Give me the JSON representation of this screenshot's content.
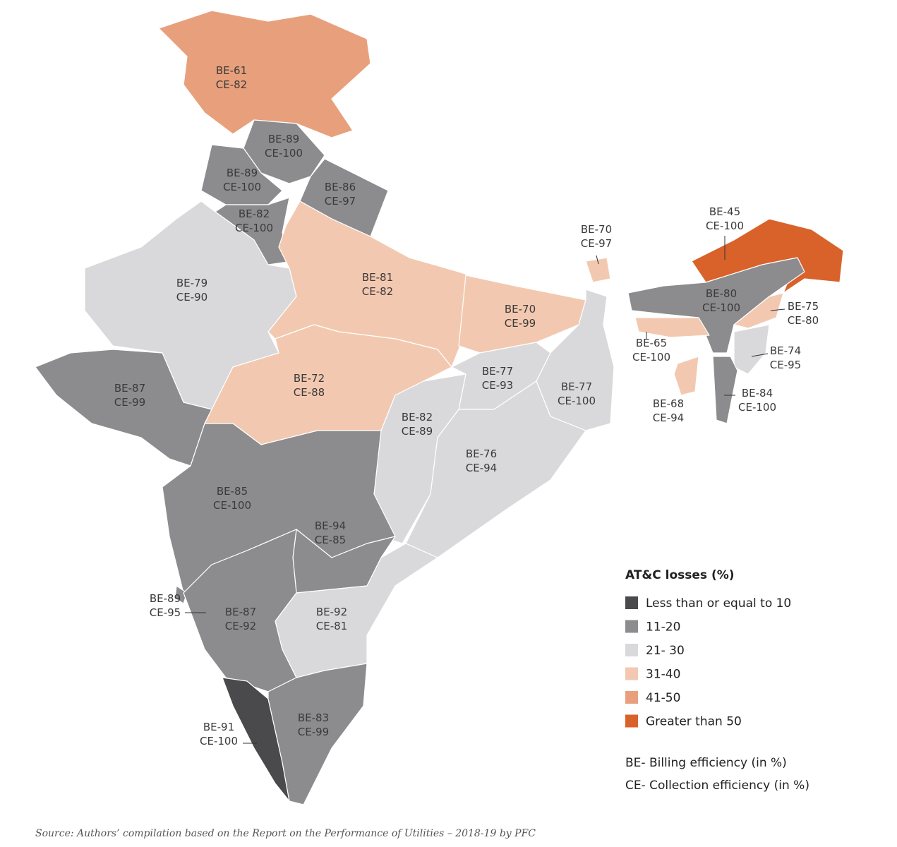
{
  "regions": [
    {
      "be": "BE-61",
      "ce": "CE-82",
      "color": "#e8a07c"
    },
    {
      "be": "BE-89",
      "ce": "CE-100",
      "color": "#8c8c8f"
    },
    {
      "be": "BE-89",
      "ce": "CE-100",
      "color": "#8c8c8f"
    },
    {
      "be": "BE-86",
      "ce": "CE-97",
      "color": "#8c8c8f"
    },
    {
      "be": "BE-82",
      "ce": "CE-100",
      "color": "#8c8c8f"
    },
    {
      "be": "BE-79",
      "ce": "CE-90",
      "color": "#d9d9dc"
    },
    {
      "be": "BE-81",
      "ce": "CE-82",
      "color": "#f2c9b0"
    },
    {
      "be": "BE-70",
      "ce": "CE-99",
      "color": "#f2c9b0"
    },
    {
      "be": "BE-70",
      "ce": "CE-97",
      "color": "#f2c9b0"
    },
    {
      "be": "BE-45",
      "ce": "CE-100",
      "color": "#d9622b"
    },
    {
      "be": "BE-80",
      "ce": "CE-100",
      "color": "#8c8c8f"
    },
    {
      "be": "BE-75",
      "ce": "CE-80",
      "color": "#f2c9b0"
    },
    {
      "be": "BE-65",
      "ce": "CE-100",
      "color": "#f2c9b0"
    },
    {
      "be": "BE-74",
      "ce": "CE-95",
      "color": "#d9d9dc"
    },
    {
      "be": "BE-68",
      "ce": "CE-94",
      "color": "#f2c9b0"
    },
    {
      "be": "BE-84",
      "ce": "CE-100",
      "color": "#8c8c8f"
    },
    {
      "be": "BE-87",
      "ce": "CE-99",
      "color": "#8c8c8f"
    },
    {
      "be": "BE-72",
      "ce": "CE-88",
      "color": "#f2c9b0"
    },
    {
      "be": "BE-77",
      "ce": "CE-93",
      "color": "#d9d9dc"
    },
    {
      "be": "BE-77",
      "ce": "CE-100",
      "color": "#d9d9dc"
    },
    {
      "be": "BE-82",
      "ce": "CE-89",
      "color": "#d9d9dc"
    },
    {
      "be": "BE-76",
      "ce": "CE-94",
      "color": "#d9d9dc"
    },
    {
      "be": "BE-85",
      "ce": "CE-100",
      "color": "#8c8c8f"
    },
    {
      "be": "BE-94",
      "ce": "CE-85",
      "color": "#8c8c8f"
    },
    {
      "be": "BE-89",
      "ce": "CE-95",
      "color": "#8c8c8f"
    },
    {
      "be": "BE-87",
      "ce": "CE-92",
      "color": "#8c8c8f"
    },
    {
      "be": "BE-92",
      "ce": "CE-81",
      "color": "#d9d9dc"
    },
    {
      "be": "BE-91",
      "ce": "CE-100",
      "color": "#4a4a4c"
    },
    {
      "be": "BE-83",
      "ce": "CE-99",
      "color": "#8c8c8f"
    }
  ],
  "legend": {
    "title": "AT&C losses (%)",
    "items": [
      {
        "label": "Less than or equal to 10",
        "color": "#4a4a4c"
      },
      {
        "label": "11-20",
        "color": "#8c8c8f"
      },
      {
        "label": "21- 30",
        "color": "#d9d9dc"
      },
      {
        "label": "31-40",
        "color": "#f2c9b0"
      },
      {
        "label": "41-50",
        "color": "#e8a07c"
      },
      {
        "label": "Greater than 50",
        "color": "#d9622b"
      }
    ]
  },
  "notes": [
    "BE- Billing efficiency (in %)",
    "CE- Collection efficiency (in %)"
  ],
  "source": "Source: Authors’ compilation based on the Report on the Performance of Utilities – 2018-19 by PFC"
}
